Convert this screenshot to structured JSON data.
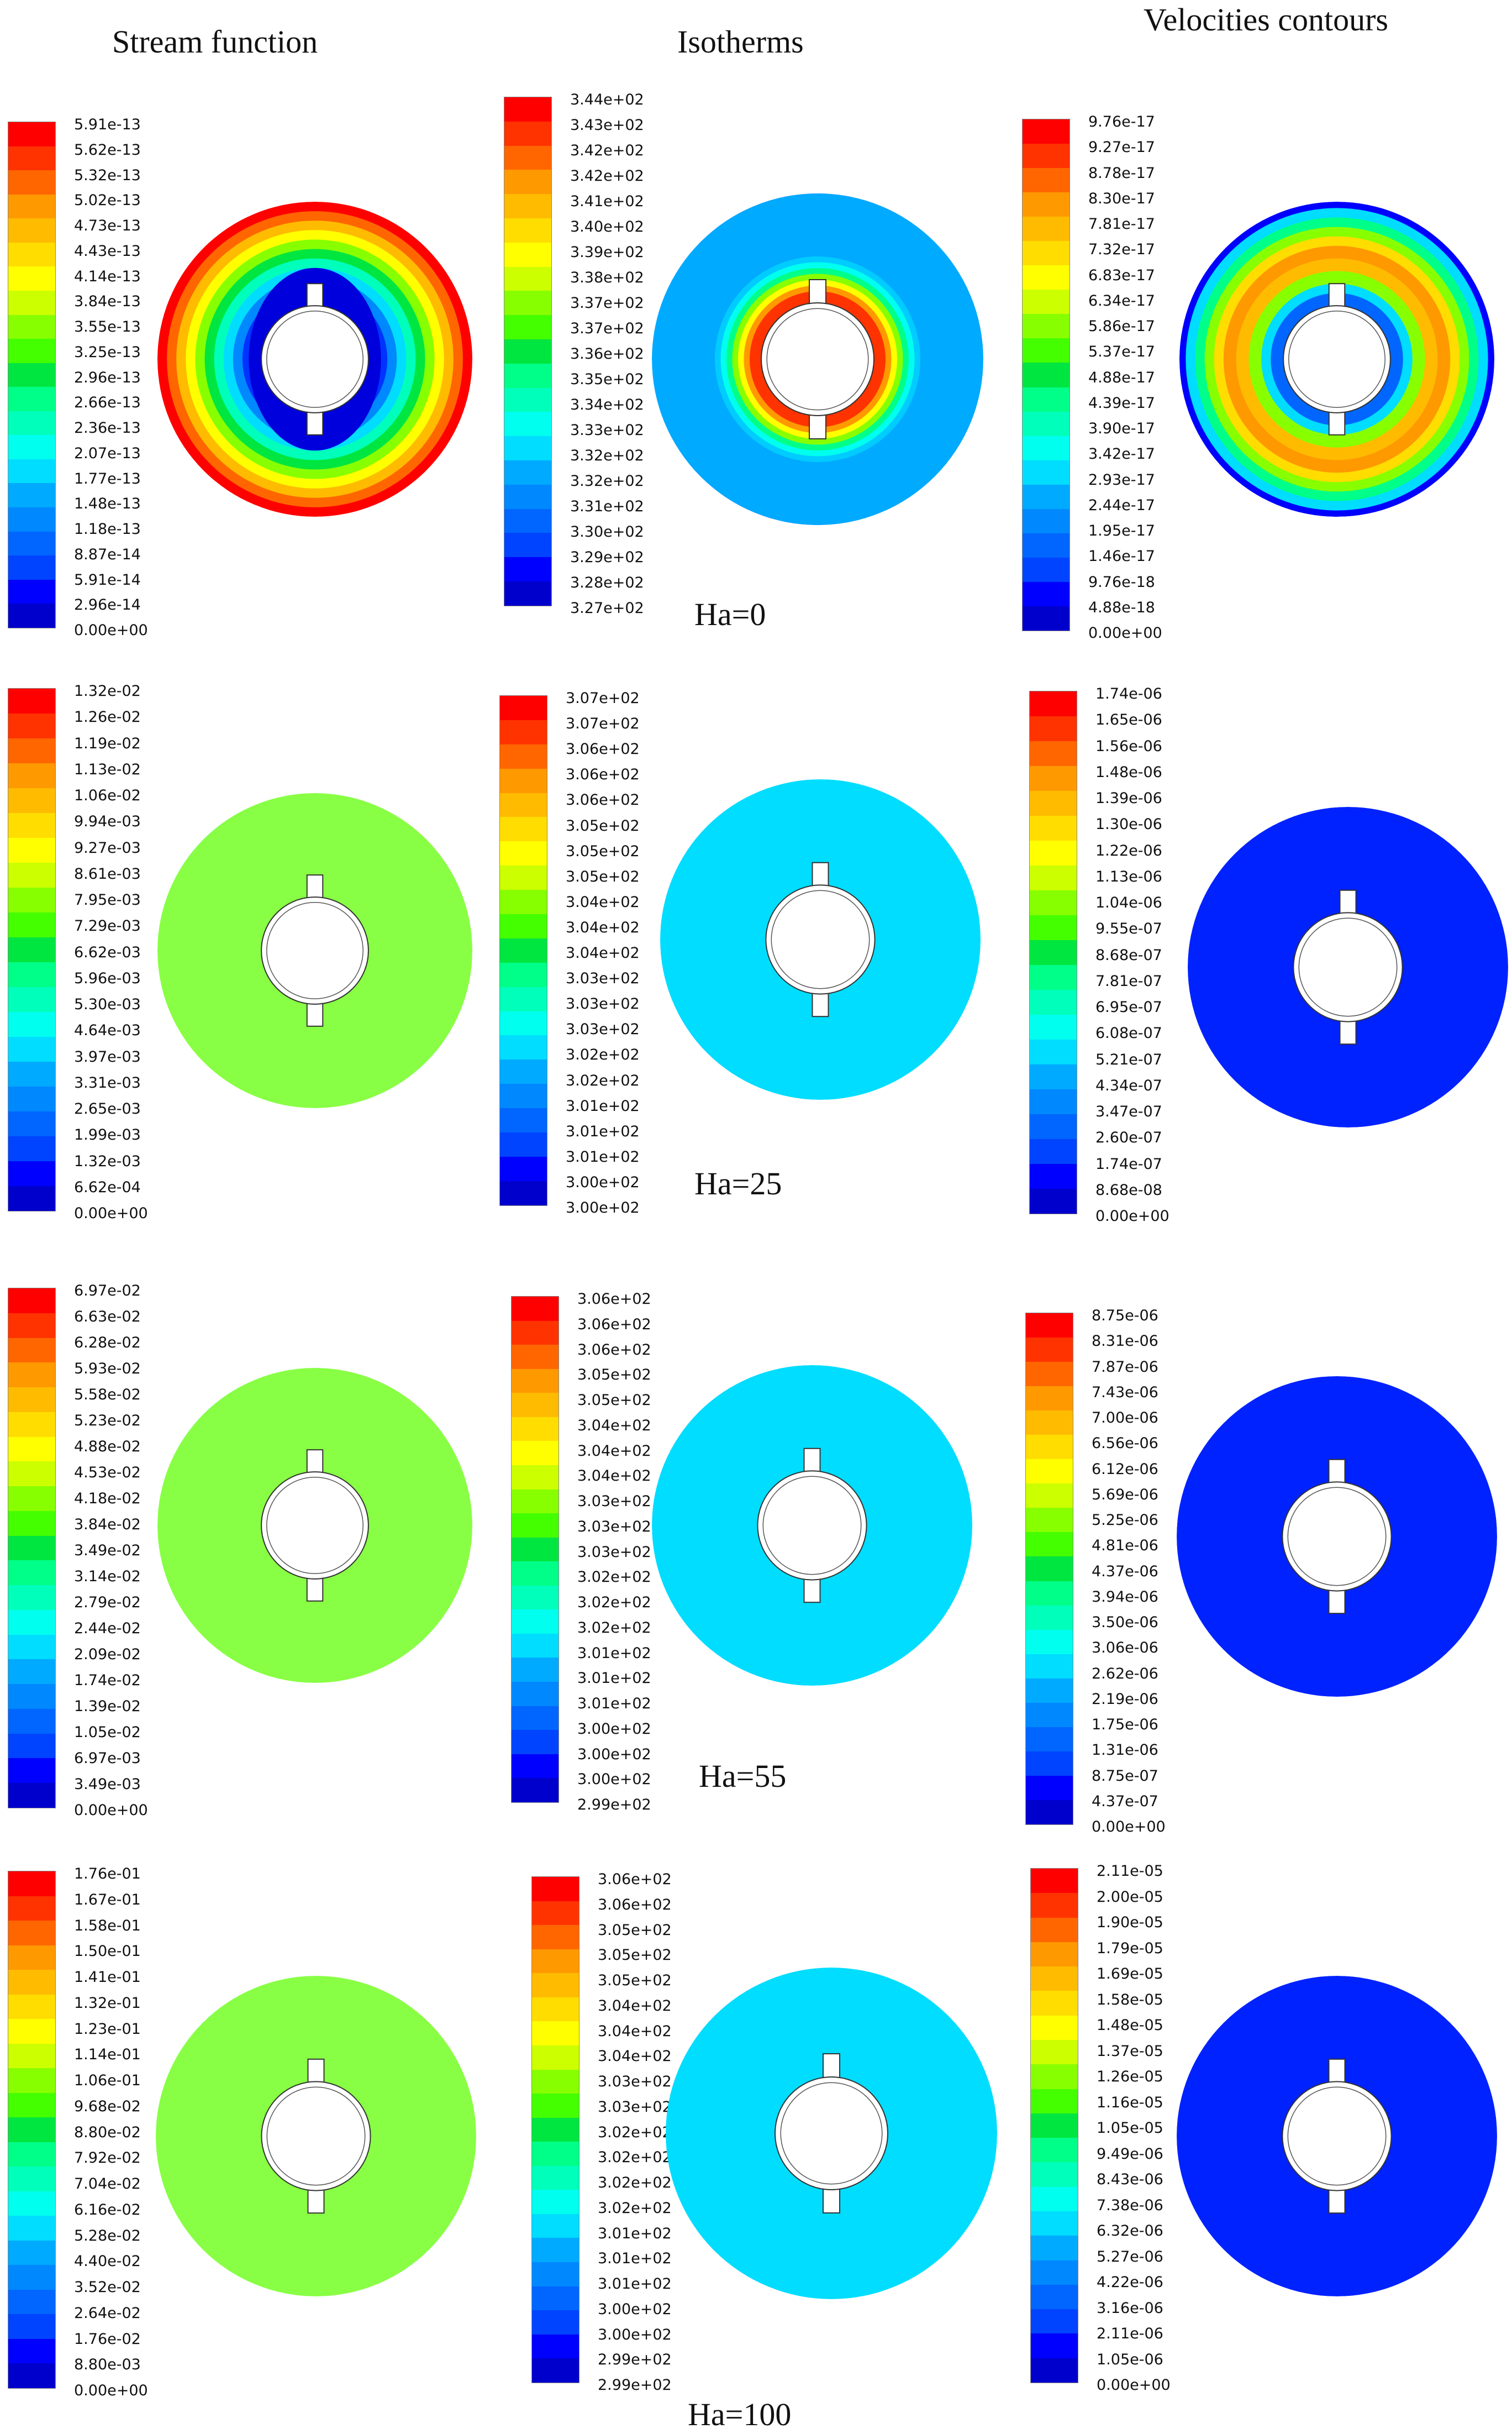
{
  "columns": [
    {
      "title": "Stream function"
    },
    {
      "title": "Isotherms"
    },
    {
      "title": "Velocities contours"
    }
  ],
  "rows": [
    {
      "label": "Ha=0",
      "stream": [
        "5.91e-13",
        "5.62e-13",
        "5.32e-13",
        "5.02e-13",
        "4.73e-13",
        "4.43e-13",
        "4.14e-13",
        "3.84e-13",
        "3.55e-13",
        "3.25e-13",
        "2.96e-13",
        "2.66e-13",
        "2.36e-13",
        "2.07e-13",
        "1.77e-13",
        "1.48e-13",
        "1.18e-13",
        "8.87e-14",
        "5.91e-14",
        "2.96e-14",
        "0.00e+00"
      ],
      "iso": [
        "3.44e+02",
        "3.43e+02",
        "3.42e+02",
        "3.42e+02",
        "3.41e+02",
        "3.40e+02",
        "3.39e+02",
        "3.38e+02",
        "3.37e+02",
        "3.37e+02",
        "3.36e+02",
        "3.35e+02",
        "3.34e+02",
        "3.33e+02",
        "3.32e+02",
        "3.32e+02",
        "3.31e+02",
        "3.30e+02",
        "3.29e+02",
        "3.28e+02",
        "3.27e+02"
      ],
      "vel": [
        "9.76e-17",
        "9.27e-17",
        "8.78e-17",
        "8.30e-17",
        "7.81e-17",
        "7.32e-17",
        "6.83e-17",
        "6.34e-17",
        "5.86e-17",
        "5.37e-17",
        "4.88e-17",
        "4.39e-17",
        "3.90e-17",
        "3.42e-17",
        "2.93e-17",
        "2.44e-17",
        "1.95e-17",
        "1.46e-17",
        "9.76e-18",
        "4.88e-18",
        "0.00e+00"
      ]
    },
    {
      "label": "Ha=25",
      "stream": [
        "1.32e-02",
        "1.26e-02",
        "1.19e-02",
        "1.13e-02",
        "1.06e-02",
        "9.94e-03",
        "9.27e-03",
        "8.61e-03",
        "7.95e-03",
        "7.29e-03",
        "6.62e-03",
        "5.96e-03",
        "5.30e-03",
        "4.64e-03",
        "3.97e-03",
        "3.31e-03",
        "2.65e-03",
        "1.99e-03",
        "1.32e-03",
        "6.62e-04",
        "0.00e+00"
      ],
      "iso": [
        "3.07e+02",
        "3.07e+02",
        "3.06e+02",
        "3.06e+02",
        "3.06e+02",
        "3.05e+02",
        "3.05e+02",
        "3.05e+02",
        "3.04e+02",
        "3.04e+02",
        "3.04e+02",
        "3.03e+02",
        "3.03e+02",
        "3.03e+02",
        "3.02e+02",
        "3.02e+02",
        "3.01e+02",
        "3.01e+02",
        "3.01e+02",
        "3.00e+02",
        "3.00e+02"
      ],
      "vel": [
        "1.74e-06",
        "1.65e-06",
        "1.56e-06",
        "1.48e-06",
        "1.39e-06",
        "1.30e-06",
        "1.22e-06",
        "1.13e-06",
        "1.04e-06",
        "9.55e-07",
        "8.68e-07",
        "7.81e-07",
        "6.95e-07",
        "6.08e-07",
        "5.21e-07",
        "4.34e-07",
        "3.47e-07",
        "2.60e-07",
        "1.74e-07",
        "8.68e-08",
        "0.00e+00"
      ]
    },
    {
      "label": "Ha=55",
      "stream": [
        "6.97e-02",
        "6.63e-02",
        "6.28e-02",
        "5.93e-02",
        "5.58e-02",
        "5.23e-02",
        "4.88e-02",
        "4.53e-02",
        "4.18e-02",
        "3.84e-02",
        "3.49e-02",
        "3.14e-02",
        "2.79e-02",
        "2.44e-02",
        "2.09e-02",
        "1.74e-02",
        "1.39e-02",
        "1.05e-02",
        "6.97e-03",
        "3.49e-03",
        "0.00e+00"
      ],
      "iso": [
        "3.06e+02",
        "3.06e+02",
        "3.06e+02",
        "3.05e+02",
        "3.05e+02",
        "3.04e+02",
        "3.04e+02",
        "3.04e+02",
        "3.03e+02",
        "3.03e+02",
        "3.03e+02",
        "3.02e+02",
        "3.02e+02",
        "3.02e+02",
        "3.01e+02",
        "3.01e+02",
        "3.01e+02",
        "3.00e+02",
        "3.00e+02",
        "3.00e+02",
        "2.99e+02"
      ],
      "vel": [
        "8.75e-06",
        "8.31e-06",
        "7.87e-06",
        "7.43e-06",
        "7.00e-06",
        "6.56e-06",
        "6.12e-06",
        "5.69e-06",
        "5.25e-06",
        "4.81e-06",
        "4.37e-06",
        "3.94e-06",
        "3.50e-06",
        "3.06e-06",
        "2.62e-06",
        "2.19e-06",
        "1.75e-06",
        "1.31e-06",
        "8.75e-07",
        "4.37e-07",
        "0.00e+00"
      ]
    },
    {
      "label": "Ha=100",
      "stream": [
        "1.76e-01",
        "1.67e-01",
        "1.58e-01",
        "1.50e-01",
        "1.41e-01",
        "1.32e-01",
        "1.23e-01",
        "1.14e-01",
        "1.06e-01",
        "9.68e-02",
        "8.80e-02",
        "7.92e-02",
        "7.04e-02",
        "6.16e-02",
        "5.28e-02",
        "4.40e-02",
        "3.52e-02",
        "2.64e-02",
        "1.76e-02",
        "8.80e-03",
        "0.00e+00"
      ],
      "iso": [
        "3.06e+02",
        "3.06e+02",
        "3.05e+02",
        "3.05e+02",
        "3.05e+02",
        "3.04e+02",
        "3.04e+02",
        "3.04e+02",
        "3.03e+02",
        "3.03e+02",
        "3.02e+02",
        "3.02e+02",
        "3.02e+02",
        "3.02e+02",
        "3.01e+02",
        "3.01e+02",
        "3.01e+02",
        "3.00e+02",
        "3.00e+02",
        "2.99e+02",
        "2.99e+02"
      ],
      "vel": [
        "2.11e-05",
        "2.00e-05",
        "1.90e-05",
        "1.79e-05",
        "1.69e-05",
        "1.58e-05",
        "1.48e-05",
        "1.37e-05",
        "1.26e-05",
        "1.16e-05",
        "1.05e-05",
        "9.49e-06",
        "8.43e-06",
        "7.38e-06",
        "6.32e-06",
        "5.27e-06",
        "4.22e-06",
        "3.16e-06",
        "2.11e-06",
        "1.05e-06",
        "0.00e+00"
      ]
    }
  ],
  "palette": [
    "#ff0000",
    "#ff3300",
    "#ff6600",
    "#ff9900",
    "#ffbb00",
    "#ffdd00",
    "#ffff00",
    "#ccff00",
    "#88ff00",
    "#44ff00",
    "#00e640",
    "#00ff88",
    "#00ffbb",
    "#00ffee",
    "#00ddff",
    "#00aaff",
    "#0088ff",
    "#0066ff",
    "#0044ff",
    "#0000ff",
    "#0000cc"
  ]
}
